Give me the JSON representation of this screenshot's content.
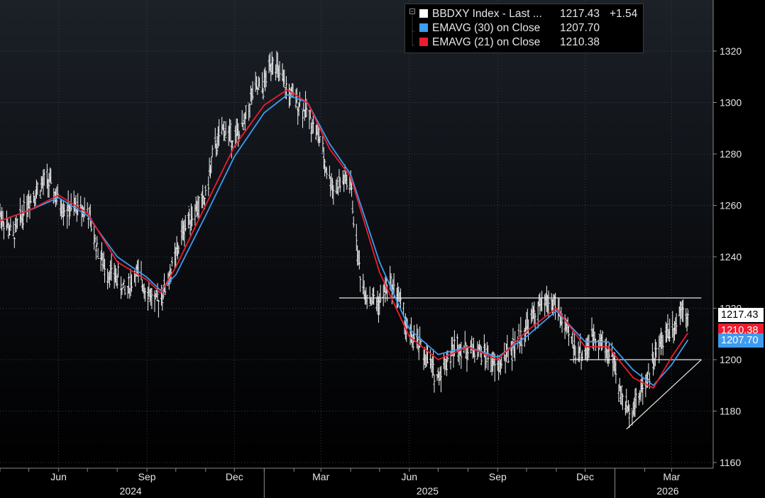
{
  "legend": {
    "rows": [
      {
        "label": "BBDXY Index - Last ...",
        "value": "1217.43",
        "change": "+1.54",
        "color": "#ffffff"
      },
      {
        "label": "EMAVG (30)  on Close",
        "value": "1207.70",
        "color": "#3d9bf0"
      },
      {
        "label": "EMAVG (21)  on Close",
        "value": "1210.38",
        "color": "#ee1c2e"
      }
    ]
  },
  "price_tags": {
    "last": "1217.43",
    "ema21": "1210.38",
    "ema30": "1207.70"
  },
  "chart_data": {
    "type": "line",
    "y_ticks": [
      1160,
      1180,
      1200,
      1220,
      1240,
      1260,
      1280,
      1300,
      1320
    ],
    "ylim": [
      1157,
      1333
    ],
    "x_month_labels": [
      "Jun",
      "Sep",
      "Dec",
      "Mar",
      "Jun",
      "Sep",
      "Dec",
      "Mar"
    ],
    "x_year_labels": [
      "2024",
      "2025",
      "2026"
    ],
    "x_range": [
      "2024-04-01",
      "2026-03-31"
    ],
    "grid": true,
    "series": [
      {
        "name": "BBDXY Index - Last",
        "color": "#ffffff",
        "style": "daily high-low bars",
        "points": [
          [
            "2024-04-01",
            1257
          ],
          [
            "2024-04-15",
            1248
          ],
          [
            "2024-04-30",
            1262
          ],
          [
            "2024-05-10",
            1266
          ],
          [
            "2024-05-20",
            1270
          ],
          [
            "2024-05-31",
            1262
          ],
          [
            "2024-06-10",
            1258
          ],
          [
            "2024-06-20",
            1259
          ],
          [
            "2024-07-01",
            1258
          ],
          [
            "2024-07-10",
            1245
          ],
          [
            "2024-07-20",
            1235
          ],
          [
            "2024-08-01",
            1232
          ],
          [
            "2024-08-10",
            1226
          ],
          [
            "2024-08-20",
            1234
          ],
          [
            "2024-08-31",
            1228
          ],
          [
            "2024-09-10",
            1222
          ],
          [
            "2024-09-20",
            1228
          ],
          [
            "2024-10-01",
            1240
          ],
          [
            "2024-10-10",
            1252
          ],
          [
            "2024-10-20",
            1258
          ],
          [
            "2024-10-31",
            1262
          ],
          [
            "2024-11-10",
            1282
          ],
          [
            "2024-11-20",
            1290
          ],
          [
            "2024-11-30",
            1286
          ],
          [
            "2024-12-10",
            1290
          ],
          [
            "2024-12-20",
            1304
          ],
          [
            "2024-12-31",
            1306
          ],
          [
            "2025-01-10",
            1318
          ],
          [
            "2025-01-15",
            1312
          ],
          [
            "2025-01-25",
            1304
          ],
          [
            "2025-02-05",
            1300
          ],
          [
            "2025-02-15",
            1296
          ],
          [
            "2025-02-28",
            1286
          ],
          [
            "2025-03-05",
            1276
          ],
          [
            "2025-03-15",
            1266
          ],
          [
            "2025-03-25",
            1270
          ],
          [
            "2025-04-01",
            1268
          ],
          [
            "2025-04-05",
            1252
          ],
          [
            "2025-04-12",
            1230
          ],
          [
            "2025-04-20",
            1224
          ],
          [
            "2025-05-01",
            1222
          ],
          [
            "2025-05-10",
            1230
          ],
          [
            "2025-05-20",
            1226
          ],
          [
            "2025-05-31",
            1210
          ],
          [
            "2025-06-10",
            1206
          ],
          [
            "2025-06-20",
            1200
          ],
          [
            "2025-06-30",
            1193
          ],
          [
            "2025-07-10",
            1200
          ],
          [
            "2025-07-20",
            1206
          ],
          [
            "2025-07-31",
            1204
          ],
          [
            "2025-08-10",
            1204
          ],
          [
            "2025-08-20",
            1202
          ],
          [
            "2025-08-31",
            1196
          ],
          [
            "2025-09-10",
            1202
          ],
          [
            "2025-09-20",
            1206
          ],
          [
            "2025-09-30",
            1212
          ],
          [
            "2025-10-10",
            1218
          ],
          [
            "2025-10-20",
            1222
          ],
          [
            "2025-10-31",
            1222
          ],
          [
            "2025-11-10",
            1212
          ],
          [
            "2025-11-20",
            1205
          ],
          [
            "2025-11-30",
            1202
          ],
          [
            "2025-12-10",
            1210
          ],
          [
            "2025-12-20",
            1206
          ],
          [
            "2025-12-31",
            1200
          ],
          [
            "2026-01-05",
            1188
          ],
          [
            "2026-01-15",
            1180
          ],
          [
            "2026-01-25",
            1185
          ],
          [
            "2026-02-05",
            1195
          ],
          [
            "2026-02-15",
            1204
          ],
          [
            "2026-02-25",
            1212
          ],
          [
            "2026-03-05",
            1214
          ],
          [
            "2026-03-12",
            1222
          ],
          [
            "2026-03-18",
            1217.43
          ]
        ]
      },
      {
        "name": "EMAVG (30) on Close",
        "color": "#3d9bf0",
        "points": [
          [
            "2024-04-01",
            1254
          ],
          [
            "2024-05-01",
            1258
          ],
          [
            "2024-06-01",
            1263
          ],
          [
            "2024-07-01",
            1256
          ],
          [
            "2024-08-01",
            1240
          ],
          [
            "2024-09-01",
            1232
          ],
          [
            "2024-09-15",
            1227
          ],
          [
            "2024-10-01",
            1233
          ],
          [
            "2024-11-01",
            1256
          ],
          [
            "2024-12-01",
            1279
          ],
          [
            "2025-01-01",
            1296
          ],
          [
            "2025-01-25",
            1303
          ],
          [
            "2025-02-15",
            1300
          ],
          [
            "2025-03-10",
            1284
          ],
          [
            "2025-04-01",
            1272
          ],
          [
            "2025-05-01",
            1238
          ],
          [
            "2025-06-01",
            1212
          ],
          [
            "2025-07-01",
            1202
          ],
          [
            "2025-08-01",
            1205
          ],
          [
            "2025-09-01",
            1201
          ],
          [
            "2025-10-01",
            1209
          ],
          [
            "2025-11-01",
            1219
          ],
          [
            "2025-12-01",
            1207
          ],
          [
            "2025-12-25",
            1207
          ],
          [
            "2026-01-20",
            1196
          ],
          [
            "2026-02-10",
            1190
          ],
          [
            "2026-03-01",
            1198
          ],
          [
            "2026-03-18",
            1207.7
          ]
        ]
      },
      {
        "name": "EMAVG (21) on Close",
        "color": "#ee1c2e",
        "points": [
          [
            "2024-04-01",
            1254
          ],
          [
            "2024-05-01",
            1258
          ],
          [
            "2024-06-01",
            1264
          ],
          [
            "2024-07-01",
            1257
          ],
          [
            "2024-08-01",
            1238
          ],
          [
            "2024-09-01",
            1231
          ],
          [
            "2024-09-15",
            1226
          ],
          [
            "2024-10-01",
            1236
          ],
          [
            "2024-11-01",
            1260
          ],
          [
            "2024-12-01",
            1283
          ],
          [
            "2025-01-01",
            1299
          ],
          [
            "2025-01-25",
            1305
          ],
          [
            "2025-02-15",
            1300
          ],
          [
            "2025-03-10",
            1282
          ],
          [
            "2025-04-01",
            1271
          ],
          [
            "2025-05-01",
            1234
          ],
          [
            "2025-06-01",
            1209
          ],
          [
            "2025-07-01",
            1200
          ],
          [
            "2025-08-01",
            1205
          ],
          [
            "2025-09-01",
            1200
          ],
          [
            "2025-10-01",
            1211
          ],
          [
            "2025-11-01",
            1220
          ],
          [
            "2025-12-01",
            1205
          ],
          [
            "2025-12-25",
            1205
          ],
          [
            "2026-01-20",
            1193
          ],
          [
            "2026-02-10",
            1189
          ],
          [
            "2026-03-01",
            1201
          ],
          [
            "2026-03-18",
            1210.38
          ]
        ]
      }
    ],
    "annotations": [
      {
        "kind": "horizontal",
        "y": 1224,
        "from": "2025-03-20",
        "to": "2026-04-01"
      },
      {
        "kind": "horizontal",
        "y": 1200,
        "from": "2025-11-15",
        "to": "2026-04-01"
      },
      {
        "kind": "trendline",
        "from": [
          "2026-01-13",
          1173
        ],
        "to": [
          "2026-04-01",
          1200
        ]
      }
    ]
  }
}
